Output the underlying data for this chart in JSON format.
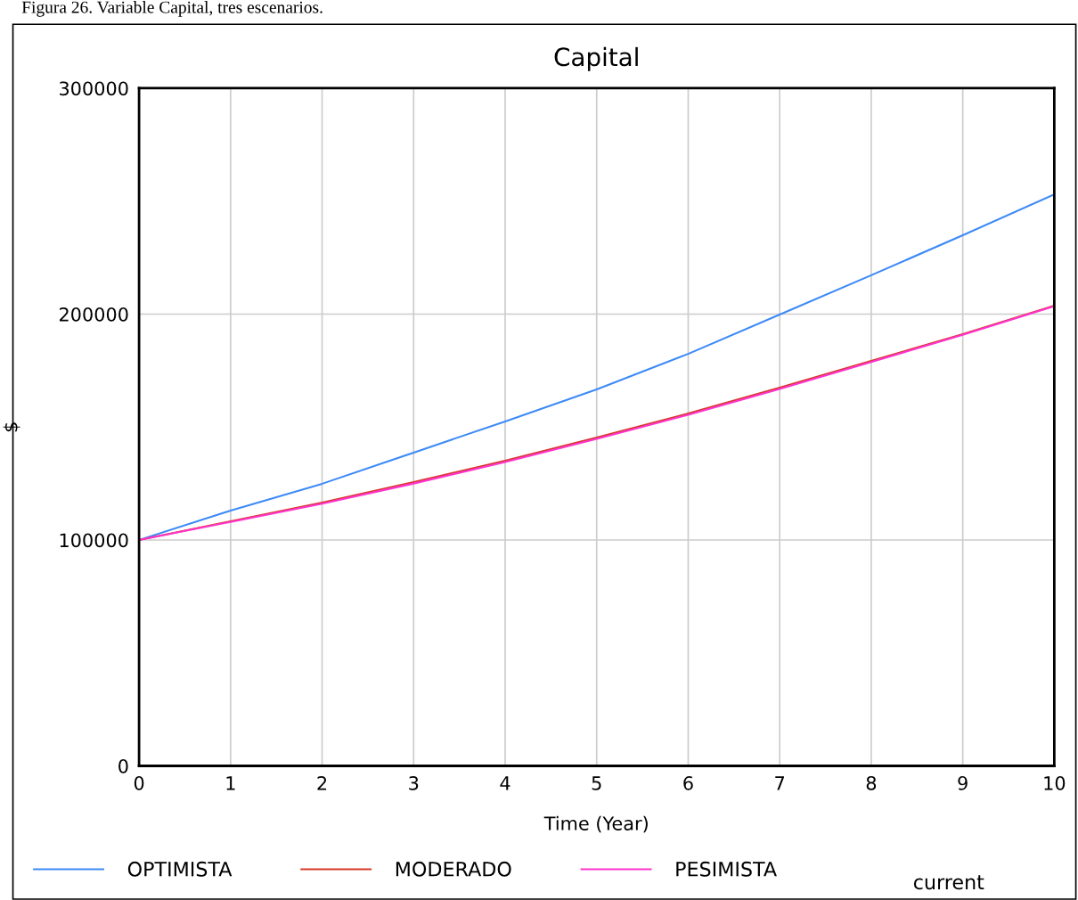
{
  "chart_data": {
    "type": "line",
    "title": "Capital",
    "xlabel": "Time (Year)",
    "ylabel": "$",
    "annotations": [
      "Figura 26. Variable Capital, tres escenarios.",
      "current"
    ],
    "x": [
      0,
      1,
      2,
      3,
      4,
      5,
      6,
      7,
      8,
      9,
      10
    ],
    "series": [
      {
        "name": "OPTIMISTA",
        "color": "#3d8af7",
        "values": [
          100000,
          113000,
          124900,
          138700,
          152500,
          166700,
          182400,
          199800,
          217200,
          234900,
          253000
        ]
      },
      {
        "name": "MODERADO",
        "color": "#d63a2a",
        "values": [
          100000,
          108300,
          116600,
          125600,
          135100,
          145400,
          156000,
          167500,
          179300,
          191100,
          203700
        ]
      },
      {
        "name": "PESIMISTA",
        "color": "#ff33cc",
        "values": [
          100000,
          108000,
          116100,
          125000,
          134500,
          144800,
          155400,
          166900,
          178800,
          190800,
          203500
        ]
      }
    ],
    "xlim": [
      0,
      10
    ],
    "xticks": [
      0,
      1,
      2,
      3,
      4,
      5,
      6,
      7,
      8,
      9,
      10
    ],
    "ylim": [
      0,
      300000
    ],
    "yticks": [
      0,
      100000,
      200000,
      300000
    ],
    "grid": true,
    "legend": "bottom",
    "marker": "none",
    "line_style": "solid"
  }
}
